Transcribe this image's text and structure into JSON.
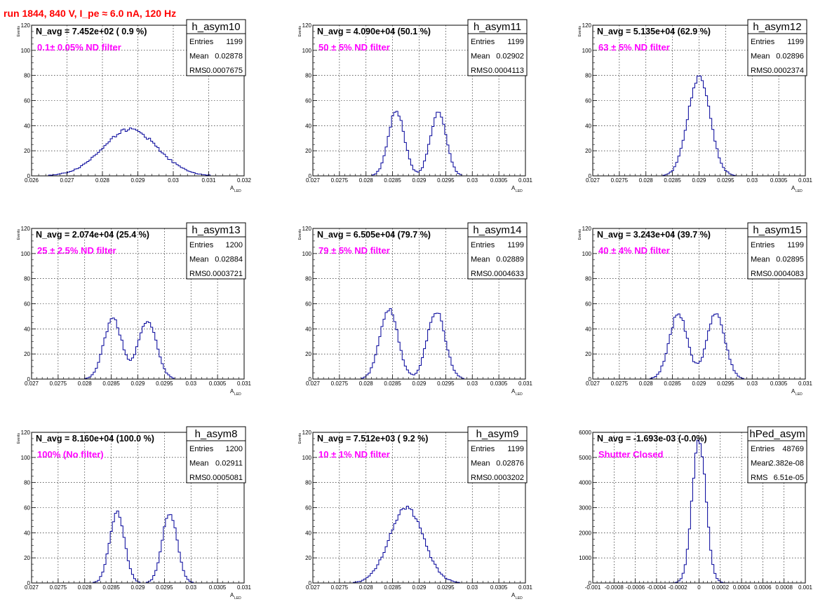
{
  "header": {
    "run_title": "run 1844,   840 V, I_pe ≈ 6.0 nA, 120 Hz"
  },
  "colors": {
    "title": "#ff0000",
    "filter_label": "#ff00ff",
    "histogram_line": "#000099",
    "grid": "#000000"
  },
  "chart_data": [
    {
      "type": "histogram",
      "name": "h_asym10",
      "navg_label": "N_avg = 7.452e+02 ( 0.9 %)",
      "filter_label": "0.1± 0.05% ND filter",
      "stats": {
        "entries": "1199",
        "mean": "0.02878",
        "rms": "0.0007675"
      },
      "xlabel": "A",
      "xlabel_sub": "LED",
      "ylabel": "Events",
      "xlim": [
        0.026,
        0.032
      ],
      "ylim": [
        0,
        120
      ],
      "xticks": [
        0.026,
        0.027,
        0.028,
        0.029,
        0.03,
        0.031,
        0.032
      ],
      "xtick_labels": [
        "0.026",
        "0.027",
        "0.028",
        "0.029",
        "0.03",
        "0.031",
        "0.032"
      ],
      "yticks": [
        0,
        20,
        40,
        60,
        80,
        100,
        120
      ],
      "ytick_labels": [
        "0",
        "20",
        "40",
        "60",
        "80",
        "100",
        "120"
      ],
      "shape": {
        "peaks": [
          [
            0.02878,
            37,
            0.00078
          ]
        ]
      }
    },
    {
      "type": "histogram",
      "name": "h_asym11",
      "navg_label": "N_avg = 4.090e+04 (50.1 %)",
      "filter_label": "50 ± 5% ND filter",
      "stats": {
        "entries": "1199",
        "mean": "0.02902",
        "rms": "0.0004113"
      },
      "xlabel": "A",
      "xlabel_sub": "LED",
      "ylabel": "Events",
      "xlim": [
        0.027,
        0.031
      ],
      "ylim": [
        0,
        120
      ],
      "xticks": [
        0.027,
        0.0275,
        0.028,
        0.0285,
        0.029,
        0.0295,
        0.03,
        0.0305,
        0.031
      ],
      "xtick_labels": [
        "0.027",
        "0.0275",
        "0.028",
        "0.0285",
        "0.029",
        "0.0295",
        "0.03",
        "0.0305",
        "0.031"
      ],
      "yticks": [
        0,
        20,
        40,
        60,
        80,
        100,
        120
      ],
      "ytick_labels": [
        "0",
        "20",
        "40",
        "60",
        "80",
        "100",
        "120"
      ],
      "shape": {
        "peaks": [
          [
            0.02857,
            52,
            0.00015
          ],
          [
            0.02936,
            50,
            0.00015
          ]
        ]
      }
    },
    {
      "type": "histogram",
      "name": "h_asym12",
      "navg_label": "N_avg = 5.135e+04 (62.9 %)",
      "filter_label": "63 ± 5% ND filter",
      "stats": {
        "entries": "1199",
        "mean": "0.02896",
        "rms": "0.0002374"
      },
      "xlabel": "A",
      "xlabel_sub": "LED",
      "ylabel": "Events",
      "xlim": [
        0.027,
        0.031
      ],
      "ylim": [
        0,
        120
      ],
      "xticks": [
        0.027,
        0.0275,
        0.028,
        0.0285,
        0.029,
        0.0295,
        0.03,
        0.0305,
        0.031
      ],
      "xtick_labels": [
        "0.027",
        "0.0275",
        "0.028",
        "0.0285",
        "0.029",
        "0.0295",
        "0.03",
        "0.0305",
        "0.031"
      ],
      "yticks": [
        0,
        20,
        40,
        60,
        80,
        100,
        120
      ],
      "ytick_labels": [
        "0",
        "20",
        "40",
        "60",
        "80",
        "100",
        "120"
      ],
      "shape": {
        "peaks": [
          [
            0.029,
            78,
            0.00021
          ]
        ]
      }
    },
    {
      "type": "histogram",
      "name": "h_asym13",
      "navg_label": "N_avg = 2.074e+04 (25.4 %)",
      "filter_label": "25 ± 2.5% ND filter",
      "stats": {
        "entries": "1200",
        "mean": "0.02884",
        "rms": "0.0003721"
      },
      "xlabel": "A",
      "xlabel_sub": "LED",
      "ylabel": "Events",
      "xlim": [
        0.027,
        0.031
      ],
      "ylim": [
        0,
        120
      ],
      "xticks": [
        0.027,
        0.0275,
        0.028,
        0.0285,
        0.029,
        0.0295,
        0.03,
        0.0305,
        0.031
      ],
      "xtick_labels": [
        "0.027",
        "0.0275",
        "0.028",
        "0.0285",
        "0.029",
        "0.0295",
        "0.03",
        "0.0305",
        "0.031"
      ],
      "yticks": [
        0,
        20,
        40,
        60,
        80,
        100,
        120
      ],
      "ytick_labels": [
        "0",
        "20",
        "40",
        "60",
        "80",
        "100",
        "120"
      ],
      "shape": {
        "peaks": [
          [
            0.02853,
            48,
            0.00017
          ],
          [
            0.02918,
            47,
            0.00017
          ]
        ]
      }
    },
    {
      "type": "histogram",
      "name": "h_asym14",
      "navg_label": "N_avg = 6.505e+04 (79.7 %)",
      "filter_label": "79 ± 5% ND filter",
      "stats": {
        "entries": "1199",
        "mean": "0.02889",
        "rms": "0.0004633"
      },
      "xlabel": "A",
      "xlabel_sub": "LED",
      "ylabel": "Events",
      "xlim": [
        0.027,
        0.031
      ],
      "ylim": [
        0,
        120
      ],
      "xticks": [
        0.027,
        0.0275,
        0.028,
        0.0285,
        0.029,
        0.0295,
        0.03,
        0.0305,
        0.031
      ],
      "xtick_labels": [
        "0.027",
        "0.0275",
        "0.028",
        "0.0285",
        "0.029",
        "0.0295",
        "0.03",
        "0.0305",
        "0.031"
      ],
      "yticks": [
        0,
        20,
        40,
        60,
        80,
        100,
        120
      ],
      "ytick_labels": [
        "0",
        "20",
        "40",
        "60",
        "80",
        "100",
        "120"
      ],
      "shape": {
        "peaks": [
          [
            0.02843,
            56,
            0.00017
          ],
          [
            0.02932,
            54,
            0.00017
          ]
        ]
      }
    },
    {
      "type": "histogram",
      "name": "h_asym15",
      "navg_label": "N_avg = 3.243e+04 (39.7 %)",
      "filter_label": "40 ± 4% ND filter",
      "stats": {
        "entries": "1199",
        "mean": "0.02895",
        "rms": "0.0004083"
      },
      "xlabel": "A",
      "xlabel_sub": "LED",
      "ylabel": "Events",
      "xlim": [
        0.027,
        0.031
      ],
      "ylim": [
        0,
        120
      ],
      "xticks": [
        0.027,
        0.0275,
        0.028,
        0.0285,
        0.029,
        0.0295,
        0.03,
        0.0305,
        0.031
      ],
      "xtick_labels": [
        "0.027",
        "0.0275",
        "0.028",
        "0.0285",
        "0.029",
        "0.0295",
        "0.03",
        "0.0305",
        "0.031"
      ],
      "yticks": [
        0,
        20,
        40,
        60,
        80,
        100,
        120
      ],
      "ytick_labels": [
        "0",
        "20",
        "40",
        "60",
        "80",
        "100",
        "120"
      ],
      "shape": {
        "peaks": [
          [
            0.02861,
            52,
            0.00017
          ],
          [
            0.02932,
            52,
            0.00017
          ]
        ]
      }
    },
    {
      "type": "histogram",
      "name": "h_asym8",
      "navg_label": "N_avg = 8.160e+04 (100.0 %)",
      "filter_label": "100% (No filter)",
      "stats": {
        "entries": "1200",
        "mean": "0.02911",
        "rms": "0.0005081"
      },
      "xlabel": "A",
      "xlabel_sub": "LED",
      "ylabel": "Events",
      "xlim": [
        0.027,
        0.031
      ],
      "ylim": [
        0,
        120
      ],
      "xticks": [
        0.027,
        0.0275,
        0.028,
        0.0285,
        0.029,
        0.0295,
        0.03,
        0.0305,
        0.031
      ],
      "xtick_labels": [
        "0.027",
        "0.0275",
        "0.028",
        "0.0285",
        "0.029",
        "0.0295",
        "0.03",
        "0.0305",
        "0.031"
      ],
      "yticks": [
        0,
        20,
        40,
        60,
        80,
        100,
        120
      ],
      "ytick_labels": [
        "0",
        "20",
        "40",
        "60",
        "80",
        "100",
        "120"
      ],
      "shape": {
        "peaks": [
          [
            0.02861,
            56,
            0.00014
          ],
          [
            0.0296,
            56,
            0.00014
          ]
        ]
      }
    },
    {
      "type": "histogram",
      "name": "h_asym9",
      "navg_label": "N_avg = 7.512e+03 ( 9.2 %)",
      "filter_label": "10 ± 1% ND filter",
      "stats": {
        "entries": "1199",
        "mean": "0.02876",
        "rms": "0.0003202"
      },
      "xlabel": "A",
      "xlabel_sub": "LED",
      "ylabel": "Events",
      "xlim": [
        0.027,
        0.031
      ],
      "ylim": [
        0,
        120
      ],
      "xticks": [
        0.027,
        0.0275,
        0.028,
        0.0285,
        0.029,
        0.0295,
        0.03,
        0.0305,
        0.031
      ],
      "xtick_labels": [
        "0.027",
        "0.0275",
        "0.028",
        "0.0285",
        "0.029",
        "0.0295",
        "0.03",
        "0.0305",
        "0.031"
      ],
      "yticks": [
        0,
        20,
        40,
        60,
        80,
        100,
        120
      ],
      "ytick_labels": [
        "0",
        "20",
        "40",
        "60",
        "80",
        "100",
        "120"
      ],
      "shape": {
        "peaks": [
          [
            0.02876,
            60,
            0.00032
          ]
        ]
      }
    },
    {
      "type": "histogram",
      "name": "hPed_asym",
      "navg_label": "N_avg = -1.693e-03 (-0.0%)",
      "filter_label": "Shutter Closed",
      "stats": {
        "entries": "48769",
        "mean": "2.382e-08",
        "rms": "6.51e-05"
      },
      "xlabel": "",
      "xlabel_sub": "",
      "ylabel": "",
      "xlim": [
        -0.001,
        0.001
      ],
      "ylim": [
        0,
        6000
      ],
      "xticks": [
        -0.001,
        -0.0008,
        -0.0006,
        -0.0004,
        -0.0002,
        0,
        0.0002,
        0.0004,
        0.0006,
        0.0008,
        0.001
      ],
      "xtick_labels": [
        "-0.001",
        "-0.0008",
        "-0.0006",
        "-0.0004",
        "-0.0002",
        "0",
        "0.0002",
        "0.0004",
        "0.0006",
        "0.0008",
        "0.001"
      ],
      "yticks": [
        0,
        1000,
        2000,
        3000,
        4000,
        5000,
        6000
      ],
      "ytick_labels": [
        "0",
        "1000",
        "2000",
        "3000",
        "4000",
        "5000",
        "6000"
      ],
      "shape": {
        "peaks": [
          [
            0.0,
            5700,
            6.5e-05
          ]
        ]
      }
    }
  ]
}
